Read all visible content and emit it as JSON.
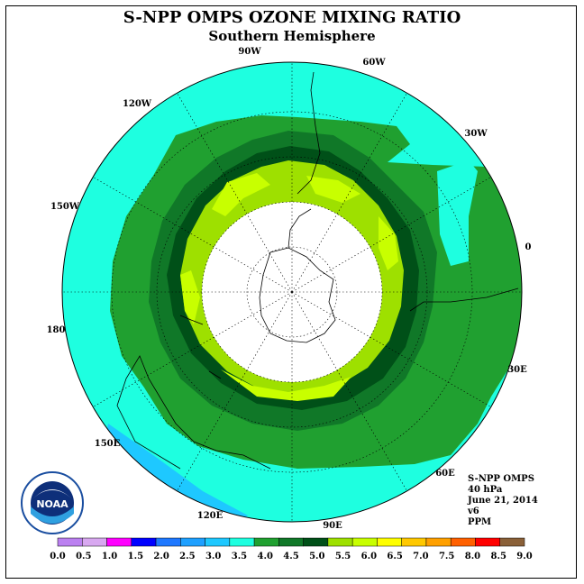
{
  "title": "S-NPP OMPS OZONE MIXING RATIO",
  "subtitle": "Southern Hemisphere",
  "longitude_labels": [
    {
      "text": "90W",
      "name": "lon-label-90w"
    },
    {
      "text": "60W",
      "name": "lon-label-60w"
    },
    {
      "text": "120W",
      "name": "lon-label-120w"
    },
    {
      "text": "30W",
      "name": "lon-label-30w"
    },
    {
      "text": "150W",
      "name": "lon-label-150w"
    },
    {
      "text": "0",
      "name": "lon-label-0"
    },
    {
      "text": "180",
      "name": "lon-label-180"
    },
    {
      "text": "30E",
      "name": "lon-label-30e"
    },
    {
      "text": "150E",
      "name": "lon-label-150e"
    },
    {
      "text": "60E",
      "name": "lon-label-60e"
    },
    {
      "text": "120E",
      "name": "lon-label-120e"
    },
    {
      "text": "90E",
      "name": "lon-label-90e"
    }
  ],
  "info": {
    "instrument": "S-NPP OMPS",
    "pressure": "40 hPa",
    "date": "June 21, 2014",
    "version": "v6",
    "units": "PPM"
  },
  "logo": {
    "text": "NOAA",
    "icon": "noaa-logo-icon"
  },
  "colorbar": {
    "labels": [
      "0.0",
      "0.5",
      "1.0",
      "1.5",
      "2.0",
      "2.5",
      "3.0",
      "3.5",
      "4.0",
      "4.5",
      "5.0",
      "5.5",
      "6.0",
      "6.5",
      "7.0",
      "7.5",
      "8.0",
      "8.5",
      "9.0"
    ],
    "colors": [
      "#bb80f0",
      "#d8a8f0",
      "#ff00ff",
      "#0000ff",
      "#1e78ff",
      "#1ea0ff",
      "#1ec8ff",
      "#1effe0",
      "#20a030",
      "#107828",
      "#005018",
      "#9ee000",
      "#c8ff00",
      "#ffff00",
      "#ffc800",
      "#ffa000",
      "#ff6000",
      "#ff0000",
      "#8a6038"
    ]
  },
  "map_colors": {
    "band_3_0": "#1ec8ff",
    "band_3_5": "#1effe0",
    "band_4_0": "#20a030",
    "band_4_5": "#107828",
    "band_5_0": "#005018",
    "band_5_5": "#9ee000",
    "band_6_0": "#c8ff00",
    "no_data": "#ffffff"
  }
}
